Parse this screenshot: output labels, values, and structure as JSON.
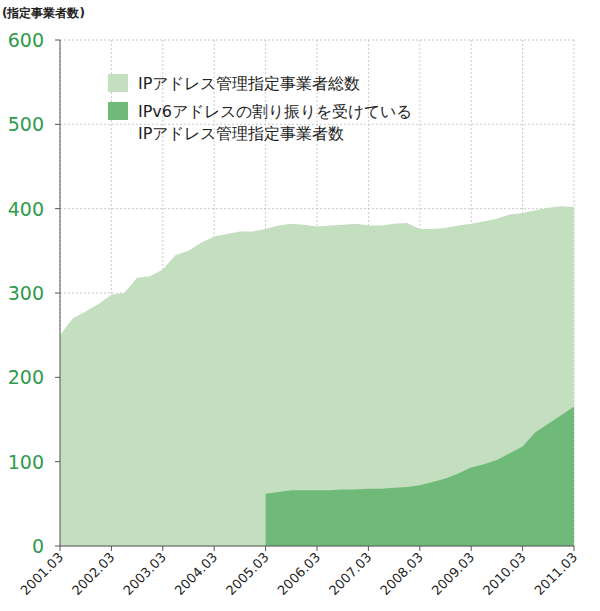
{
  "chart_data": {
    "type": "area",
    "y_label": "(指定事業者数)",
    "categories": [
      "2001.03",
      null,
      null,
      null,
      "2002.03",
      null,
      null,
      null,
      "2003.03",
      null,
      null,
      null,
      "2004.03",
      null,
      null,
      null,
      "2005.03",
      null,
      null,
      null,
      "2006.03",
      null,
      null,
      null,
      "2007.03",
      null,
      null,
      null,
      "2008.03",
      null,
      null,
      null,
      "2009.03",
      null,
      null,
      null,
      "2010.03",
      null,
      null,
      null,
      "2011.03"
    ],
    "series": [
      {
        "name": "IPアドレス管理指定事業者総数",
        "color": "#c4dfc0",
        "values": [
          250,
          270,
          278,
          287,
          298,
          300,
          318,
          320,
          328,
          345,
          350,
          360,
          367,
          370,
          373,
          373,
          376,
          380,
          382,
          381,
          379,
          380,
          381,
          382,
          380,
          380,
          382,
          383,
          376,
          376,
          377,
          380,
          382,
          385,
          388,
          393,
          395,
          398,
          401,
          403,
          402
        ]
      },
      {
        "name": "IPv6アドレスの割り振りを受けている\nIPアドレス管理指定事業者数",
        "color": "#6fb979",
        "values": [
          null,
          null,
          null,
          null,
          null,
          null,
          null,
          null,
          null,
          null,
          null,
          null,
          null,
          null,
          null,
          null,
          62,
          64,
          66,
          66,
          66,
          66,
          67,
          67,
          68,
          68,
          69,
          70,
          72,
          76,
          80,
          86,
          93,
          97,
          102,
          110,
          118,
          135,
          145,
          155,
          165
        ]
      }
    ],
    "ylim": [
      0,
      600
    ],
    "yticks": [
      0,
      100,
      200,
      300,
      400,
      500,
      600
    ],
    "grid": true,
    "stacked": false,
    "legend": "top-left"
  }
}
